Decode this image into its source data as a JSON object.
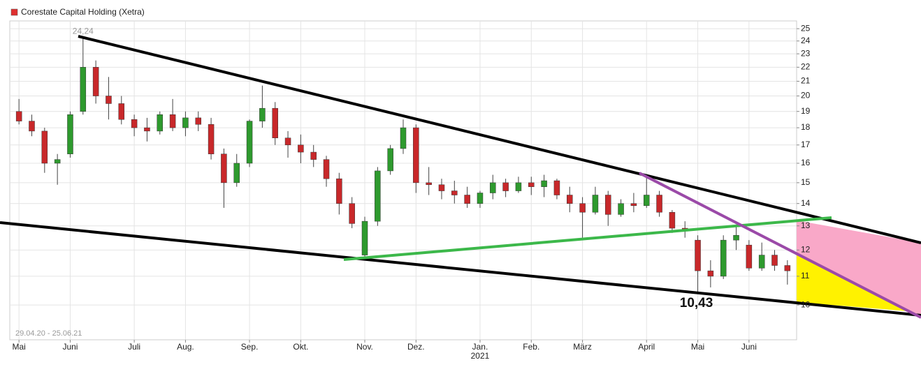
{
  "chart_data": {
    "type": "candlestick",
    "title": "Corestate Capital Holding (Xetra)",
    "title_marker_color": "#e03030",
    "date_range": "29.04.20 - 25.06.21",
    "year_label": "2021",
    "categories": [
      "Mai",
      null,
      null,
      null,
      "Juni",
      null,
      null,
      null,
      null,
      "Juli",
      null,
      null,
      null,
      "Aug.",
      null,
      null,
      null,
      null,
      "Sep.",
      null,
      null,
      null,
      "Okt.",
      null,
      null,
      null,
      null,
      "Nov.",
      null,
      null,
      null,
      "Dez.",
      null,
      null,
      null,
      null,
      "Jan.",
      null,
      null,
      null,
      "Feb.",
      null,
      null,
      null,
      "März",
      null,
      null,
      null,
      null,
      "April",
      null,
      null,
      null,
      "Mai",
      null,
      null,
      null,
      "Juni",
      null,
      null,
      null
    ],
    "open": [
      19,
      18.4,
      17.8,
      16,
      16.5,
      19,
      22,
      20,
      19.5,
      18.5,
      18,
      17.8,
      18.8,
      18,
      18.6,
      18.2,
      16.5,
      15,
      16,
      18.4,
      19.2,
      17.4,
      17,
      16.6,
      16.2,
      15.2,
      14,
      11.8,
      13.2,
      15.6,
      16.8,
      18,
      15,
      14.9,
      14.6,
      14.4,
      14,
      14.5,
      15,
      14.6,
      15,
      14.8,
      15.1,
      14.4,
      14,
      13.6,
      14.4,
      13.5,
      14,
      13.9,
      14.4,
      13.6,
      12.9,
      12.4,
      11.2,
      11,
      12.4,
      12.2,
      11.3,
      11.8,
      11.4
    ],
    "high": [
      19.8,
      18.8,
      18,
      16.5,
      19,
      24.24,
      22.5,
      21.3,
      20,
      18.8,
      18.6,
      19,
      19.8,
      19,
      19,
      18.6,
      16.8,
      16.5,
      18.5,
      20.7,
      19.6,
      17.8,
      17.6,
      17,
      16.4,
      15.5,
      14.3,
      13.4,
      15.8,
      17,
      18.5,
      18.2,
      15.8,
      15.2,
      15.1,
      14.8,
      14.6,
      15.4,
      15.2,
      15.3,
      15.3,
      15.4,
      15.2,
      14.8,
      14.3,
      14.8,
      14.6,
      14.2,
      14.5,
      15.3,
      14.6,
      13.7,
      13.2,
      12.6,
      11.6,
      12.6,
      13,
      12.4,
      12.3,
      12,
      11.6
    ],
    "low": [
      18.2,
      17.5,
      15.5,
      14.9,
      16.3,
      18.8,
      19.5,
      18.5,
      18.2,
      17.5,
      17.2,
      17.6,
      17.8,
      17.5,
      17.8,
      16.2,
      13.8,
      14.8,
      15.8,
      18,
      17,
      16.3,
      16,
      15.8,
      14.8,
      13.5,
      12.9,
      11.6,
      13,
      15.4,
      16.5,
      14.5,
      14.4,
      14.2,
      14,
      13.8,
      13.8,
      14.2,
      14.3,
      14.5,
      14.4,
      14.3,
      14.2,
      13.6,
      12.5,
      13.5,
      13,
      13.4,
      13.6,
      13.8,
      13.4,
      12.7,
      12.5,
      10.43,
      10.6,
      10.9,
      12,
      11.2,
      11.2,
      11.2,
      10.7
    ],
    "close": [
      18.4,
      17.8,
      16,
      16.2,
      18.8,
      22,
      20,
      19.5,
      18.5,
      18,
      17.8,
      18.8,
      18,
      18.6,
      18.2,
      16.5,
      15,
      16,
      18.4,
      19.2,
      17.4,
      17,
      16.6,
      16.2,
      15.2,
      14,
      13.1,
      13.2,
      15.6,
      16.8,
      18,
      15,
      14.9,
      14.6,
      14.4,
      14,
      14.5,
      15,
      14.6,
      15,
      14.8,
      15.1,
      14.4,
      14,
      13.6,
      14.4,
      13.5,
      14,
      13.9,
      14.4,
      13.6,
      12.9,
      12.8,
      11.2,
      11,
      12.4,
      12.6,
      11.3,
      11.8,
      11.4,
      11.2
    ],
    "up_color": "#2e9a2e",
    "down_color": "#c8282a",
    "ylim": [
      8.91,
      25.65
    ],
    "log_scale": true,
    "grid": true,
    "yticks": [
      10,
      11,
      12,
      13,
      14,
      15,
      16,
      17,
      18,
      19,
      20,
      21,
      22,
      23,
      24,
      25
    ],
    "annotations": [
      {
        "label": "24,24",
        "value": 24.24,
        "field": "high"
      },
      {
        "label": "10,43",
        "value": 10.43,
        "field": "low"
      }
    ]
  }
}
